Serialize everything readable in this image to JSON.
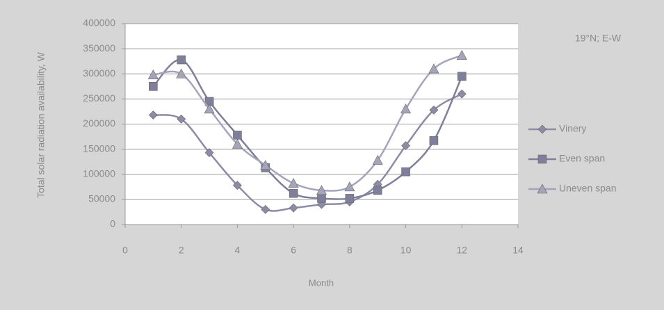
{
  "chart_data": {
    "type": "line",
    "annotation": "19°N; E-W",
    "x_label": "Month",
    "y_label": "Total solar radiation availability, W",
    "x": [
      1,
      2,
      3,
      4,
      5,
      6,
      7,
      8,
      9,
      10,
      11,
      12
    ],
    "series": [
      {
        "name": "Vinery",
        "color": "#8c8ca6",
        "marker": "diamond",
        "values": [
          218000,
          210000,
          143000,
          78000,
          30000,
          33000,
          40000,
          45000,
          80000,
          157000,
          228000,
          260000
        ]
      },
      {
        "name": "Even span",
        "color": "#7f7f9c",
        "marker": "square",
        "values": [
          275000,
          328000,
          245000,
          178000,
          113000,
          62000,
          52000,
          52000,
          68000,
          105000,
          167000,
          295000
        ]
      },
      {
        "name": "Uneven span",
        "color": "#a4a4ba",
        "marker": "triangle",
        "values": [
          298000,
          300000,
          230000,
          160000,
          118000,
          82000,
          68000,
          75000,
          128000,
          230000,
          310000,
          337000
        ]
      }
    ],
    "xlim": [
      0,
      14
    ],
    "xticks": [
      0,
      2,
      4,
      6,
      8,
      10,
      12,
      14
    ],
    "ylim": [
      0,
      400000
    ],
    "yticks": [
      0,
      50000,
      100000,
      150000,
      200000,
      250000,
      300000,
      350000,
      400000
    ],
    "grid": true,
    "legend": "right"
  }
}
